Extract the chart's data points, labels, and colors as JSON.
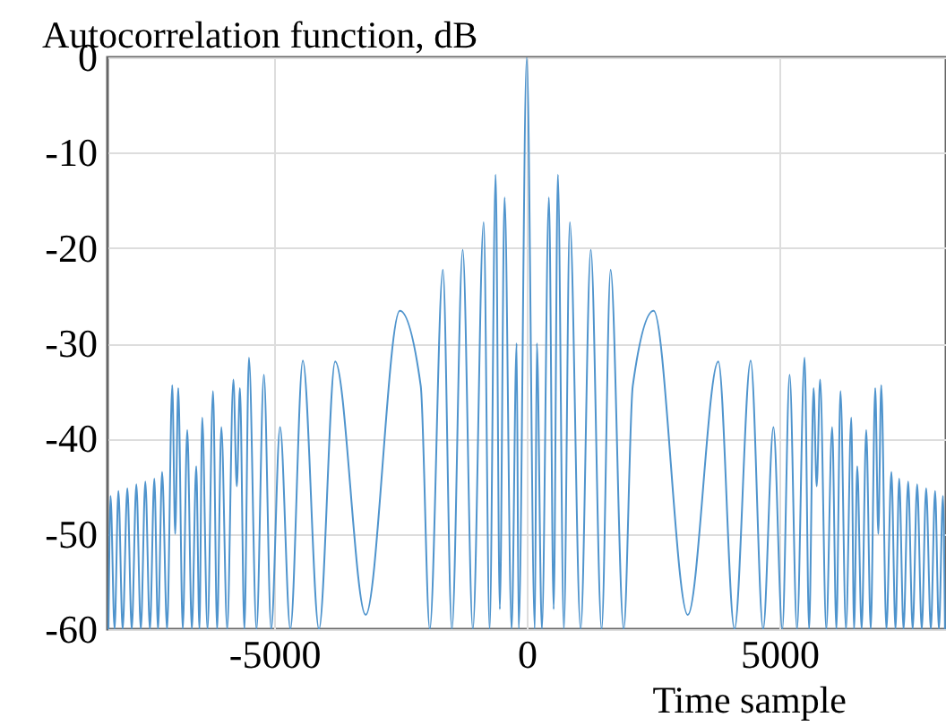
{
  "chart_data": {
    "type": "line",
    "ylabel": "Autocorrelation function, dB",
    "xlabel": "Time sample",
    "xlim": [
      -8300,
      8300
    ],
    "xticks": [
      -5000,
      0,
      5000
    ],
    "ylim": [
      -60,
      0
    ],
    "yticks": [
      -60,
      -50,
      -40,
      -30,
      -20,
      -10,
      0
    ],
    "grid": true,
    "line_style": "solid",
    "x": [
      -8280,
      -8240,
      -8160,
      -8084,
      -8000,
      -7907,
      -7820,
      -7729,
      -7640,
      -7551,
      -7460,
      -7373,
      -7300,
      -7219,
      -7120,
      -7018,
      -6960,
      -6899,
      -6810,
      -6721,
      -6630,
      -6543,
      -6480,
      -6425,
      -6320,
      -6211,
      -6130,
      -6046,
      -5930,
      -5808,
      -5740,
      -5678,
      -5590,
      -5500,
      -5350,
      -5204,
      -5060,
      -4884,
      -4680,
      -4433,
      -4113,
      -3793,
      -3189,
      -2513,
      -2098,
      -1920,
      -1660,
      -1482,
      -1268,
      -1067,
      -853,
      -735,
      -616,
      -533,
      -439,
      -300,
      -200,
      -160,
      0,
      160,
      200,
      300,
      439,
      533,
      616,
      735,
      853,
      1067,
      1268,
      1482,
      1660,
      1920,
      2098,
      2513,
      3189,
      3793,
      4113,
      4433,
      4680,
      4884,
      5060,
      5204,
      5350,
      5500,
      5590,
      5678,
      5740,
      5808,
      5930,
      6046,
      6130,
      6211,
      6320,
      6425,
      6480,
      6543,
      6630,
      6721,
      6810,
      6899,
      6960,
      7018,
      7120,
      7219,
      7300,
      7373,
      7460,
      7551,
      7640,
      7729,
      7820,
      7907,
      8000,
      8084,
      8160,
      8240,
      8280
    ],
    "series": [
      {
        "color": "#4f94cd",
        "values": [
          -60,
          -46,
          -60,
          -45.5,
          -60,
          -45.2,
          -60,
          -44.8,
          -60,
          -44.5,
          -60,
          -44.2,
          -60,
          -43.5,
          -60,
          -34.4,
          -50,
          -34.7,
          -60,
          -39.1,
          -60,
          -42.9,
          -60,
          -37.8,
          -60,
          -35,
          -60,
          -38.8,
          -60,
          -33.8,
          -45,
          -34.7,
          -60,
          -31.5,
          -60,
          -33.3,
          -60,
          -38.8,
          -60,
          -31.8,
          -60,
          -31.9,
          -58.5,
          -26.6,
          -34.5,
          -60,
          -22.3,
          -60,
          -20.2,
          -60,
          -17.3,
          -60,
          -12.3,
          -57.9,
          -14.7,
          -60,
          -30,
          -60,
          0,
          -60,
          -30,
          -60,
          -14.7,
          -57.9,
          -12.3,
          -60,
          -17.3,
          -60,
          -20.2,
          -60,
          -22.3,
          -60,
          -34.5,
          -26.6,
          -58.5,
          -31.9,
          -60,
          -31.8,
          -60,
          -38.8,
          -60,
          -33.3,
          -60,
          -31.5,
          -60,
          -34.7,
          -45,
          -33.8,
          -60,
          -38.8,
          -60,
          -35,
          -60,
          -37.8,
          -60,
          -42.9,
          -60,
          -39.1,
          -60,
          -34.7,
          -50,
          -34.4,
          -60,
          -43.5,
          -60,
          -44.2,
          -60,
          -44.5,
          -60,
          -44.8,
          -60,
          -45.2,
          -60,
          -45.5,
          -60,
          -46,
          -60
        ]
      }
    ]
  }
}
